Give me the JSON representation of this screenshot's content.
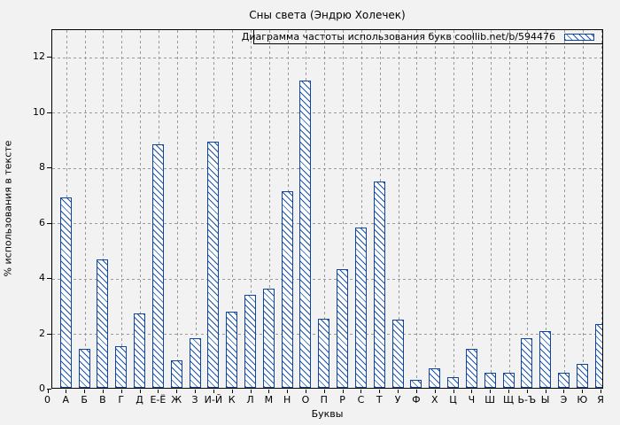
{
  "title": "Сны света (Эндрю Холечек)",
  "colors": {
    "background": "#f2f2f2",
    "bar_border": "#10459f",
    "bar_hatch": "#1c55ab",
    "bar_fill": "#fdfdfd",
    "grid": "#9a9a9a",
    "axis": "#000000",
    "text": "#000000"
  },
  "chart_data": {
    "type": "bar",
    "title": "Сны света (Эндрю Холечек)",
    "legend": "Диаграмма частоты использования букв coollib.net/b/594476",
    "legend_position": "top-right",
    "xlabel": "Буквы",
    "ylabel": "% использования в тексте",
    "categories": [
      "0",
      "А",
      "Б",
      "В",
      "Г",
      "Д",
      "Е-Ё",
      "Ж",
      "З",
      "И-Й",
      "К",
      "Л",
      "М",
      "Н",
      "О",
      "П",
      "Р",
      "С",
      "Т",
      "У",
      "Ф",
      "Х",
      "Ц",
      "Ч",
      "Ш",
      "Щ",
      "Ь-Ъ",
      "Ы",
      "Э",
      "Ю",
      "Я"
    ],
    "values": [
      0,
      6.9,
      1.4,
      4.65,
      1.5,
      2.7,
      8.8,
      1.0,
      1.8,
      8.9,
      2.75,
      3.35,
      3.6,
      7.1,
      11.1,
      2.5,
      4.3,
      5.8,
      7.45,
      2.45,
      0.3,
      0.7,
      0.4,
      1.4,
      0.55,
      0.55,
      1.8,
      2.05,
      0.55,
      0.85,
      2.3
    ],
    "yticks": [
      0,
      2,
      4,
      6,
      8,
      10,
      12
    ],
    "ylim": [
      0,
      13
    ],
    "grid": true,
    "hatch": "\\"
  }
}
